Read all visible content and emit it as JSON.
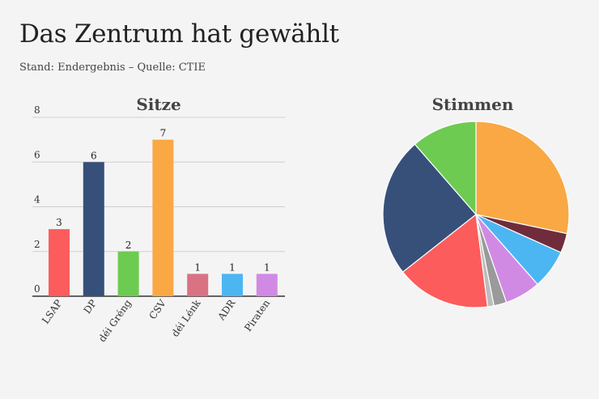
{
  "header": {
    "title": "Das Zentrum hat gewählt",
    "subtitle": "Stand: Endergebnis – Quelle: CTIE"
  },
  "chart_data": [
    {
      "type": "bar",
      "title": "Sitze",
      "categories": [
        "LSAP",
        "DP",
        "déi Gréng",
        "CSV",
        "déi Lénk",
        "ADR",
        "Piraten"
      ],
      "values": [
        3,
        6,
        2,
        7,
        1,
        1,
        1
      ],
      "colors": [
        "#fc5c5c",
        "#36507a",
        "#6dcb52",
        "#f9a844",
        "#d97384",
        "#4cb6f2",
        "#d08ae4"
      ],
      "ylim": [
        0,
        8
      ],
      "yticks": [
        0,
        2,
        4,
        6,
        8
      ],
      "grid": true,
      "data_labels": true
    },
    {
      "type": "pie",
      "title": "Stimmen",
      "slices": [
        {
          "value": 28.3,
          "color": "#f9a844"
        },
        {
          "value": 3.4,
          "color": "#6f2d3b"
        },
        {
          "value": 6.8,
          "color": "#4cb6f2"
        },
        {
          "value": 6.2,
          "color": "#d08ae4"
        },
        {
          "value": 2.2,
          "color": "#9a9a9a"
        },
        {
          "value": 1.1,
          "color": "#bdbdbd"
        },
        {
          "value": 16.4,
          "color": "#fc5c5c"
        },
        {
          "value": 24.2,
          "color": "#36507a"
        },
        {
          "value": 11.4,
          "color": "#6dcb52"
        }
      ]
    }
  ]
}
